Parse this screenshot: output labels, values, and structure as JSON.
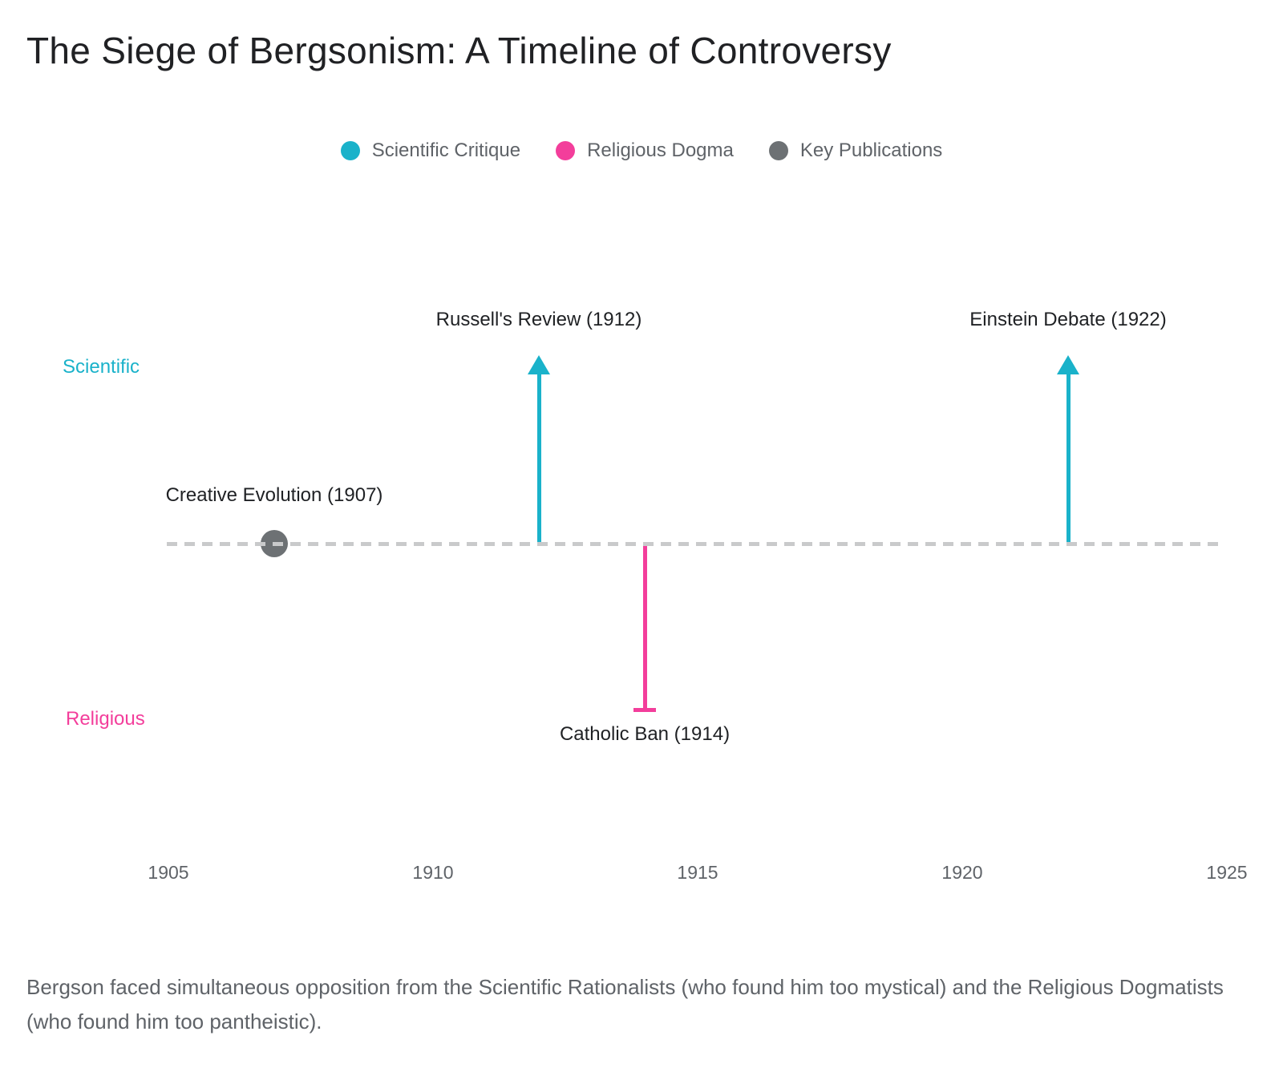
{
  "title": "The Siege of Bergsonism: A Timeline of Controversy",
  "colors": {
    "scientific": "#1ab2ca",
    "religious": "#f33e9b",
    "publications": "#6d7174",
    "timeline_dash": "#c9cacb",
    "text_dark": "#1f2124",
    "text_muted": "#5f6368"
  },
  "legend": [
    {
      "label": "Scientific Critique",
      "color": "#1ab2ca"
    },
    {
      "label": "Religious Dogma",
      "color": "#f33e9b"
    },
    {
      "label": "Key Publications",
      "color": "#6d7174"
    }
  ],
  "chart_data": {
    "type": "timeline",
    "title": "The Siege of Bergsonism: A Timeline of Controversy",
    "x_axis": {
      "ticks": [
        1905,
        1910,
        1915,
        1920,
        1925
      ],
      "range": [
        1905,
        1925
      ],
      "grid": false
    },
    "lanes": [
      {
        "label": "Scientific",
        "side": "up",
        "color": "#1ab2ca"
      },
      {
        "label": "Religious",
        "side": "down",
        "color": "#f33e9b"
      }
    ],
    "events": [
      {
        "label": "Creative Evolution (1907)",
        "year": 1907,
        "category": "Key Publications",
        "marker": "dot",
        "direction": "on-line",
        "color": "#6d7174"
      },
      {
        "label": "Russell's Review (1912)",
        "year": 1912,
        "category": "Scientific Critique",
        "marker": "arrow",
        "direction": "up",
        "color": "#1ab2ca"
      },
      {
        "label": "Catholic Ban (1914)",
        "year": 1914,
        "category": "Religious Dogma",
        "marker": "bar",
        "direction": "down",
        "color": "#f33e9b"
      },
      {
        "label": "Einstein Debate (1922)",
        "year": 1922,
        "category": "Scientific Critique",
        "marker": "arrow",
        "direction": "up",
        "color": "#1ab2ca"
      }
    ],
    "legend_position": "top-center"
  },
  "caption": "Bergson faced simultaneous opposition from the Scientific Rationalists (who found him too mystical) and the Religious Dogmatists (who found him too pantheistic)."
}
